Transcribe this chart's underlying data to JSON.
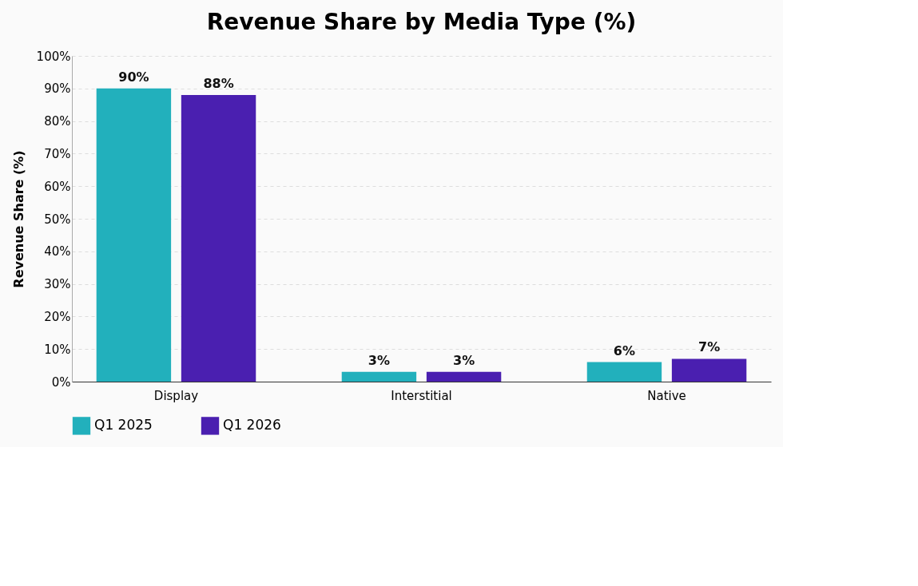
{
  "chart_data": {
    "type": "bar",
    "title": "Revenue Share by Media Type (%)",
    "ylabel": "Revenue Share (%)",
    "categories": [
      "Display",
      "Interstitial",
      "Native"
    ],
    "series": [
      {
        "name": "Q1 2025",
        "color": "#22b0bc",
        "values": [
          90,
          3,
          6
        ],
        "value_labels": [
          "90%",
          "3%",
          "6%"
        ]
      },
      {
        "name": "Q1 2026",
        "color": "#4a1fb0",
        "values": [
          88,
          3,
          7
        ],
        "value_labels": [
          "88%",
          "3%",
          "7%"
        ]
      }
    ],
    "ylim": [
      0,
      100
    ],
    "yticks": [
      {
        "value": 0,
        "label": "0%"
      },
      {
        "value": 10,
        "label": "10%"
      },
      {
        "value": 20,
        "label": "20%"
      },
      {
        "value": 30,
        "label": "30%"
      },
      {
        "value": 40,
        "label": "40%"
      },
      {
        "value": 50,
        "label": "50%"
      },
      {
        "value": 60,
        "label": "60%"
      },
      {
        "value": 70,
        "label": "70%"
      },
      {
        "value": 80,
        "label": "80%"
      },
      {
        "value": 90,
        "label": "90%"
      },
      {
        "value": 100,
        "label": "100%"
      }
    ],
    "grid": "y",
    "legend": "bottom"
  }
}
